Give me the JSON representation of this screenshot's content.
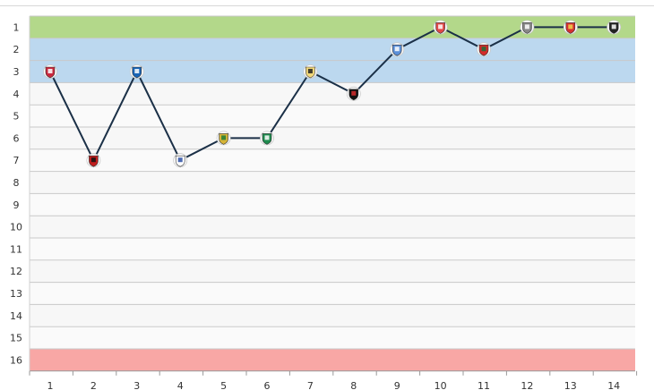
{
  "chart_data": {
    "type": "line",
    "title": "",
    "xlabel": "",
    "ylabel": "",
    "x": [
      1,
      2,
      3,
      4,
      5,
      6,
      7,
      8,
      9,
      10,
      11,
      12,
      13,
      14
    ],
    "y_ticks": [
      1,
      2,
      3,
      4,
      5,
      6,
      7,
      8,
      9,
      10,
      11,
      12,
      13,
      14,
      15,
      16
    ],
    "ylim": [
      1,
      16
    ],
    "y_inverted": true,
    "series": [
      {
        "values": [
          3,
          7,
          3,
          7,
          6,
          6,
          3,
          4,
          2,
          1,
          2,
          1,
          1,
          1
        ]
      }
    ],
    "marker_icons": [
      "team-crest-icon",
      "team-crest-icon",
      "team-crest-icon",
      "team-crest-icon",
      "team-crest-icon",
      "team-crest-icon",
      "team-crest-icon",
      "team-crest-icon",
      "team-crest-icon",
      "team-crest-icon",
      "team-crest-icon",
      "team-crest-icon",
      "team-crest-icon",
      "team-crest-icon"
    ],
    "zones": [
      {
        "from": 1,
        "to": 1,
        "color": "#b3d88a"
      },
      {
        "from": 2,
        "to": 3,
        "color": "#bcd8ef"
      },
      {
        "from": 16,
        "to": 16,
        "color": "#f8a7a5"
      }
    ],
    "line_color": "#1b3047",
    "grid": true
  }
}
